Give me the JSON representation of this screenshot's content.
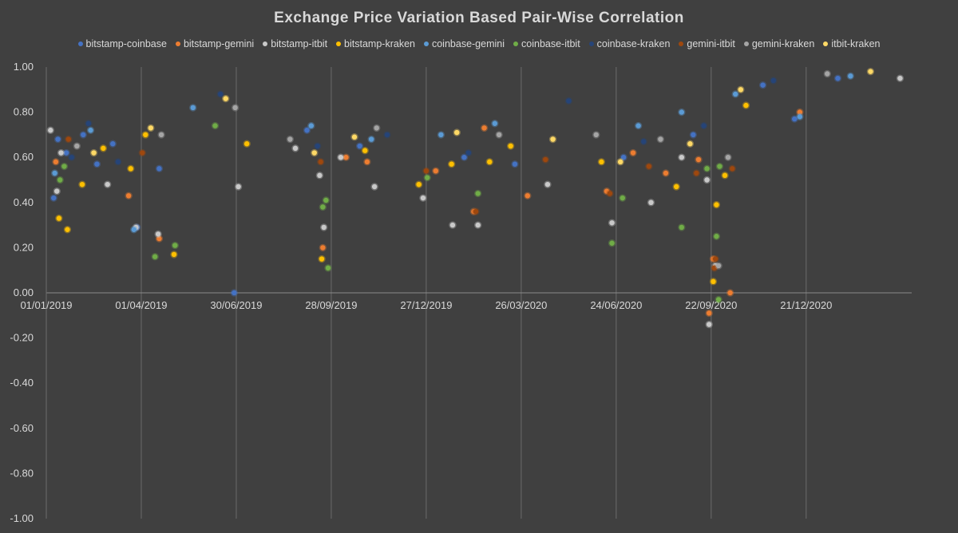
{
  "chart_data": {
    "type": "scatter",
    "title": "Exchange Price Variation Based Pair-Wise Correlation",
    "xlabel": "",
    "ylabel": "",
    "ylim": [
      -1.0,
      1.0
    ],
    "yticks": [
      "1.00",
      "0.80",
      "0.60",
      "0.40",
      "0.20",
      "0.00",
      "-0.20",
      "-0.40",
      "-0.60",
      "-0.80",
      "-1.00"
    ],
    "y_tick_values": [
      1.0,
      0.8,
      0.6,
      0.4,
      0.2,
      0.0,
      -0.2,
      -0.4,
      -0.6,
      -0.8,
      -1.0
    ],
    "xlim": [
      "2019-01-01",
      "2021-03-31"
    ],
    "xticks": [
      "01/01/2019",
      "01/04/2019",
      "30/06/2019",
      "28/09/2019",
      "27/12/2019",
      "26/03/2020",
      "24/06/2020",
      "22/09/2020",
      "21/12/2020"
    ],
    "x_tick_dates": [
      "2019-01-01",
      "2019-04-01",
      "2019-06-30",
      "2019-09-28",
      "2019-12-27",
      "2020-03-26",
      "2020-06-24",
      "2020-09-22",
      "2020-12-21"
    ],
    "grid": "vertical",
    "legend_position": "top",
    "background": "#404040",
    "series": [
      {
        "name": "bitstamp-coinbase",
        "color": "#4472c4",
        "points": [
          [
            "2019-01-08",
            0.42
          ],
          [
            "2019-01-12",
            0.68
          ],
          [
            "2019-01-20",
            0.62
          ],
          [
            "2019-02-05",
            0.7
          ],
          [
            "2019-02-18",
            0.57
          ],
          [
            "2019-03-05",
            0.66
          ],
          [
            "2019-03-28",
            0.29
          ],
          [
            "2019-04-18",
            0.55
          ],
          [
            "2019-06-28",
            0.0
          ],
          [
            "2019-09-05",
            0.72
          ],
          [
            "2019-10-25",
            0.65
          ],
          [
            "2020-02-01",
            0.6
          ],
          [
            "2020-03-20",
            0.57
          ],
          [
            "2020-07-01",
            0.6
          ],
          [
            "2020-09-05",
            0.7
          ],
          [
            "2020-11-10",
            0.92
          ],
          [
            "2020-12-10",
            0.77
          ],
          [
            "2021-01-20",
            0.95
          ]
        ]
      },
      {
        "name": "bitstamp-gemini",
        "color": "#ed7d31",
        "points": [
          [
            "2019-01-10",
            0.58
          ],
          [
            "2019-03-20",
            0.43
          ],
          [
            "2019-04-18",
            0.24
          ],
          [
            "2019-09-20",
            0.2
          ],
          [
            "2019-10-12",
            0.6
          ],
          [
            "2019-11-01",
            0.58
          ],
          [
            "2020-01-05",
            0.54
          ],
          [
            "2020-02-10",
            0.36
          ],
          [
            "2020-02-20",
            0.73
          ],
          [
            "2020-04-01",
            0.43
          ],
          [
            "2020-06-15",
            0.45
          ],
          [
            "2020-07-10",
            0.62
          ],
          [
            "2020-08-10",
            0.53
          ],
          [
            "2020-09-10",
            0.59
          ],
          [
            "2020-09-20",
            -0.09
          ],
          [
            "2020-09-24",
            0.15
          ],
          [
            "2020-10-10",
            0.0
          ],
          [
            "2020-12-15",
            0.8
          ]
        ]
      },
      {
        "name": "bitstamp-itbit",
        "color": "#c9c9c9",
        "points": [
          [
            "2019-01-05",
            0.72
          ],
          [
            "2019-01-11",
            0.45
          ],
          [
            "2019-01-15",
            0.62
          ],
          [
            "2019-02-28",
            0.48
          ],
          [
            "2019-03-27",
            0.29
          ],
          [
            "2019-04-17",
            0.26
          ],
          [
            "2019-07-02",
            0.47
          ],
          [
            "2019-08-25",
            0.64
          ],
          [
            "2019-09-17",
            0.52
          ],
          [
            "2019-09-21",
            0.29
          ],
          [
            "2019-10-07",
            0.6
          ],
          [
            "2019-11-08",
            0.47
          ],
          [
            "2019-12-24",
            0.42
          ],
          [
            "2020-01-21",
            0.3
          ],
          [
            "2020-02-14",
            0.3
          ],
          [
            "2020-04-20",
            0.48
          ],
          [
            "2020-06-20",
            0.31
          ],
          [
            "2020-07-27",
            0.4
          ],
          [
            "2020-08-25",
            0.6
          ],
          [
            "2020-09-18",
            0.5
          ],
          [
            "2020-09-20",
            -0.14
          ],
          [
            "2020-09-26",
            0.12
          ],
          [
            "2021-03-20",
            0.95
          ]
        ]
      },
      {
        "name": "bitstamp-kraken",
        "color": "#ffc000",
        "points": [
          [
            "2019-01-13",
            0.33
          ],
          [
            "2019-01-21",
            0.28
          ],
          [
            "2019-02-04",
            0.48
          ],
          [
            "2019-02-24",
            0.64
          ],
          [
            "2019-03-22",
            0.55
          ],
          [
            "2019-04-05",
            0.7
          ],
          [
            "2019-05-02",
            0.17
          ],
          [
            "2019-07-10",
            0.66
          ],
          [
            "2019-09-19",
            0.15
          ],
          [
            "2019-10-30",
            0.63
          ],
          [
            "2019-12-20",
            0.48
          ],
          [
            "2020-01-20",
            0.57
          ],
          [
            "2020-02-25",
            0.58
          ],
          [
            "2020-03-16",
            0.65
          ],
          [
            "2020-06-10",
            0.58
          ],
          [
            "2020-08-20",
            0.47
          ],
          [
            "2020-09-24",
            0.05
          ],
          [
            "2020-09-27",
            0.39
          ],
          [
            "2020-10-05",
            0.52
          ],
          [
            "2020-10-25",
            0.83
          ]
        ]
      },
      {
        "name": "coinbase-gemini",
        "color": "#5b9bd5",
        "points": [
          [
            "2019-01-09",
            0.53
          ],
          [
            "2019-02-12",
            0.72
          ],
          [
            "2019-03-25",
            0.28
          ],
          [
            "2019-05-20",
            0.82
          ],
          [
            "2019-09-09",
            0.74
          ],
          [
            "2019-11-05",
            0.68
          ],
          [
            "2020-01-10",
            0.7
          ],
          [
            "2020-03-01",
            0.75
          ],
          [
            "2020-07-15",
            0.74
          ],
          [
            "2020-08-25",
            0.8
          ],
          [
            "2020-10-15",
            0.88
          ],
          [
            "2020-12-15",
            0.78
          ],
          [
            "2021-02-01",
            0.96
          ]
        ]
      },
      {
        "name": "coinbase-itbit",
        "color": "#70ad47",
        "points": [
          [
            "2019-01-14",
            0.5
          ],
          [
            "2019-01-18",
            0.56
          ],
          [
            "2019-04-14",
            0.16
          ],
          [
            "2019-05-03",
            0.21
          ],
          [
            "2019-06-10",
            0.74
          ],
          [
            "2019-09-20",
            0.38
          ],
          [
            "2019-09-23",
            0.41
          ],
          [
            "2019-09-25",
            0.11
          ],
          [
            "2019-12-28",
            0.51
          ],
          [
            "2020-02-14",
            0.44
          ],
          [
            "2020-06-20",
            0.22
          ],
          [
            "2020-06-30",
            0.42
          ],
          [
            "2020-08-25",
            0.29
          ],
          [
            "2020-09-18",
            0.55
          ],
          [
            "2020-09-27",
            0.25
          ],
          [
            "2020-09-29",
            -0.03
          ],
          [
            "2020-09-30",
            0.56
          ]
        ]
      },
      {
        "name": "coinbase-kraken",
        "color": "#264478",
        "points": [
          [
            "2019-01-25",
            0.6
          ],
          [
            "2019-02-10",
            0.75
          ],
          [
            "2019-03-10",
            0.58
          ],
          [
            "2019-06-15",
            0.88
          ],
          [
            "2019-09-15",
            0.65
          ],
          [
            "2019-11-20",
            0.7
          ],
          [
            "2020-02-05",
            0.62
          ],
          [
            "2020-05-10",
            0.85
          ],
          [
            "2020-07-20",
            0.67
          ],
          [
            "2020-09-15",
            0.74
          ],
          [
            "2020-11-20",
            0.94
          ]
        ]
      },
      {
        "name": "gemini-itbit",
        "color": "#9e480e",
        "points": [
          [
            "2019-01-22",
            0.68
          ],
          [
            "2019-04-02",
            0.62
          ],
          [
            "2019-09-18",
            0.58
          ],
          [
            "2019-12-27",
            0.54
          ],
          [
            "2020-02-12",
            0.36
          ],
          [
            "2020-04-18",
            0.59
          ],
          [
            "2020-06-18",
            0.44
          ],
          [
            "2020-07-25",
            0.56
          ],
          [
            "2020-09-08",
            0.53
          ],
          [
            "2020-09-25",
            0.11
          ],
          [
            "2020-09-26",
            0.15
          ],
          [
            "2020-10-12",
            0.55
          ]
        ]
      },
      {
        "name": "gemini-kraken",
        "color": "#a5a5a5",
        "points": [
          [
            "2019-01-30",
            0.65
          ],
          [
            "2019-04-20",
            0.7
          ],
          [
            "2019-06-29",
            0.82
          ],
          [
            "2019-08-20",
            0.68
          ],
          [
            "2019-11-10",
            0.73
          ],
          [
            "2020-03-05",
            0.7
          ],
          [
            "2020-06-05",
            0.7
          ],
          [
            "2020-08-05",
            0.68
          ],
          [
            "2020-09-29",
            0.12
          ],
          [
            "2020-10-08",
            0.6
          ],
          [
            "2021-01-10",
            0.97
          ]
        ]
      },
      {
        "name": "itbit-kraken",
        "color": "#ffd966",
        "points": [
          [
            "2019-02-15",
            0.62
          ],
          [
            "2019-04-10",
            0.73
          ],
          [
            "2019-06-20",
            0.86
          ],
          [
            "2019-09-12",
            0.62
          ],
          [
            "2019-10-20",
            0.69
          ],
          [
            "2020-01-25",
            0.71
          ],
          [
            "2020-04-25",
            0.68
          ],
          [
            "2020-06-28",
            0.58
          ],
          [
            "2020-09-02",
            0.66
          ],
          [
            "2020-10-20",
            0.9
          ],
          [
            "2021-02-20",
            0.98
          ]
        ]
      }
    ]
  }
}
